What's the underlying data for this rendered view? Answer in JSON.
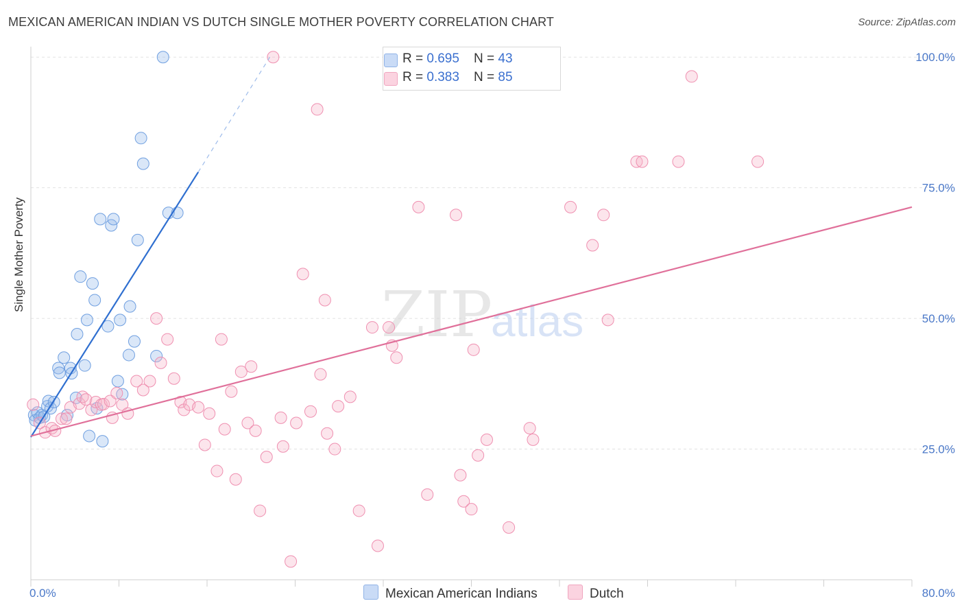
{
  "header": {
    "title": "MEXICAN AMERICAN INDIAN VS DUTCH SINGLE MOTHER POVERTY CORRELATION CHART",
    "source": "Source: ZipAtlas.com"
  },
  "watermark": {
    "zip": "ZIP",
    "atlas": "atlas"
  },
  "legend": {
    "rows": [
      {
        "r_label": "R = ",
        "r_value": "0.695",
        "n_label": "N = ",
        "n_value": "43",
        "color": "#a9c4ee"
      },
      {
        "r_label": "R = ",
        "r_value": "0.383",
        "n_label": "N = ",
        "n_value": "85",
        "color": "#f6b8cb"
      }
    ]
  },
  "bottom_legend": {
    "items": [
      {
        "label": "Mexican American Indians",
        "color": "#a9c4ee"
      },
      {
        "label": "Dutch",
        "color": "#f6b8cb"
      }
    ]
  },
  "chart_data": {
    "type": "scatter",
    "title": "MEXICAN AMERICAN INDIAN VS DUTCH SINGLE MOTHER POVERTY CORRELATION CHART",
    "xlabel": "",
    "ylabel": "Single Mother Poverty",
    "xlim": [
      0,
      80
    ],
    "ylim": [
      0,
      102
    ],
    "x_tick_labels": [
      "0.0%",
      "80.0%"
    ],
    "y_tick_labels": [
      "25.0%",
      "50.0%",
      "75.0%",
      "100.0%"
    ],
    "y_ticks": [
      25,
      50,
      75,
      100
    ],
    "grid": true,
    "legend_position": "top-center",
    "series": [
      {
        "name": "Mexican American Indians",
        "color": "#6f9fe0",
        "fill": "rgba(150,185,235,0.35)",
        "trend_color": "#2f6fd0",
        "trend": {
          "x0": 0,
          "y0": 27.3,
          "x1": 15.2,
          "y1": 78.0,
          "dash_to_x": 21.7,
          "dash_to_y": 100
        },
        "points": [
          [
            0.3,
            31.5
          ],
          [
            0.4,
            30.5
          ],
          [
            0.6,
            32
          ],
          [
            0.8,
            31
          ],
          [
            1.0,
            31.5
          ],
          [
            1.2,
            31.2
          ],
          [
            1.5,
            33.2
          ],
          [
            1.6,
            34.2
          ],
          [
            1.8,
            32.8
          ],
          [
            2.1,
            34
          ],
          [
            2.5,
            40.5
          ],
          [
            2.6,
            39.6
          ],
          [
            3.0,
            42.5
          ],
          [
            3.3,
            31.5
          ],
          [
            3.6,
            40.5
          ],
          [
            3.7,
            39.5
          ],
          [
            4.1,
            34.8
          ],
          [
            4.2,
            47
          ],
          [
            4.5,
            58
          ],
          [
            4.9,
            41
          ],
          [
            5.1,
            49.7
          ],
          [
            5.3,
            27.5
          ],
          [
            5.6,
            56.7
          ],
          [
            5.8,
            53.5
          ],
          [
            6.0,
            32.8
          ],
          [
            6.3,
            69
          ],
          [
            6.5,
            26.5
          ],
          [
            7.0,
            48.5
          ],
          [
            7.3,
            67.8
          ],
          [
            7.5,
            69
          ],
          [
            7.9,
            38
          ],
          [
            8.1,
            49.7
          ],
          [
            8.3,
            35.5
          ],
          [
            8.9,
            43
          ],
          [
            9.0,
            52.3
          ],
          [
            9.4,
            45.6
          ],
          [
            9.7,
            65
          ],
          [
            10.0,
            84.5
          ],
          [
            10.2,
            79.6
          ],
          [
            11.4,
            42.8
          ],
          [
            12.0,
            100
          ],
          [
            12.5,
            70.2
          ],
          [
            13.3,
            70.2
          ]
        ]
      },
      {
        "name": "Dutch",
        "color": "#ef8fb0",
        "fill": "rgba(245,180,200,0.35)",
        "trend_color": "#e0709a",
        "trend": {
          "x0": 0,
          "y0": 27.5,
          "x1": 80,
          "y1": 71.3
        },
        "points": [
          [
            0.2,
            33.5
          ],
          [
            0.8,
            30
          ],
          [
            1.3,
            28.2
          ],
          [
            1.9,
            29
          ],
          [
            2.2,
            28.5
          ],
          [
            2.8,
            30.8
          ],
          [
            3.2,
            30.8
          ],
          [
            3.6,
            33
          ],
          [
            4.4,
            33.7
          ],
          [
            4.7,
            35
          ],
          [
            5.0,
            34.5
          ],
          [
            5.5,
            32.5
          ],
          [
            5.9,
            34
          ],
          [
            6.4,
            33.5
          ],
          [
            6.6,
            33.6
          ],
          [
            7.2,
            34.2
          ],
          [
            7.4,
            31
          ],
          [
            7.8,
            35.7
          ],
          [
            8.3,
            33.5
          ],
          [
            8.8,
            31.8
          ],
          [
            9.6,
            38
          ],
          [
            10.2,
            36.3
          ],
          [
            10.8,
            38
          ],
          [
            11.4,
            50
          ],
          [
            11.8,
            41.5
          ],
          [
            12.4,
            46
          ],
          [
            13.0,
            38.5
          ],
          [
            13.6,
            34
          ],
          [
            13.9,
            32.5
          ],
          [
            14.4,
            33.5
          ],
          [
            15.2,
            33
          ],
          [
            15.8,
            25.8
          ],
          [
            16.2,
            31.8
          ],
          [
            16.9,
            20.8
          ],
          [
            17.3,
            46
          ],
          [
            17.6,
            28.8
          ],
          [
            18.2,
            36
          ],
          [
            18.6,
            19.2
          ],
          [
            19.1,
            39.8
          ],
          [
            19.7,
            30
          ],
          [
            20.0,
            40.8
          ],
          [
            20.4,
            28.5
          ],
          [
            20.8,
            13.2
          ],
          [
            21.4,
            23.5
          ],
          [
            22.0,
            100
          ],
          [
            22.7,
            31
          ],
          [
            22.9,
            25.5
          ],
          [
            23.6,
            3.5
          ],
          [
            24.1,
            30
          ],
          [
            24.7,
            58.5
          ],
          [
            25.4,
            32.2
          ],
          [
            26.0,
            90
          ],
          [
            26.3,
            39.3
          ],
          [
            26.7,
            53.5
          ],
          [
            26.9,
            28
          ],
          [
            27.6,
            25
          ],
          [
            27.9,
            33.2
          ],
          [
            29.0,
            35
          ],
          [
            29.8,
            13.2
          ],
          [
            31.0,
            48.3
          ],
          [
            31.5,
            6.5
          ],
          [
            32.5,
            48.3
          ],
          [
            32.8,
            44.8
          ],
          [
            33.2,
            42.5
          ],
          [
            35.2,
            71.3
          ],
          [
            36.0,
            16.3
          ],
          [
            38.6,
            69.8
          ],
          [
            39.0,
            20
          ],
          [
            39.3,
            15
          ],
          [
            40.0,
            13.5
          ],
          [
            40.6,
            23.8
          ],
          [
            41.4,
            26.8
          ],
          [
            43.4,
            10
          ],
          [
            45.3,
            29
          ],
          [
            45.6,
            26.8
          ],
          [
            49.0,
            71.3
          ],
          [
            51.0,
            64
          ],
          [
            52.0,
            69.8
          ],
          [
            52.4,
            49.7
          ],
          [
            55.0,
            80
          ],
          [
            55.5,
            80
          ],
          [
            58.8,
            80
          ],
          [
            66.0,
            80
          ],
          [
            60.0,
            96.3
          ],
          [
            40.2,
            44
          ]
        ]
      }
    ]
  }
}
